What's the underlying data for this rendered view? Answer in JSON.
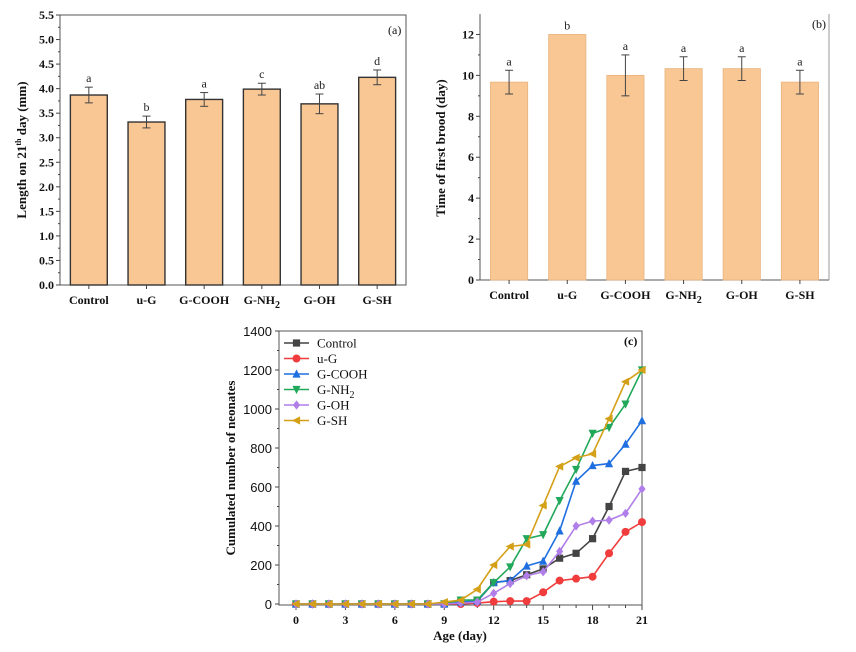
{
  "chart_data": [
    {
      "type": "bar",
      "panel": "(a)",
      "title": "",
      "xlabel": "",
      "ylabel": "Length on 21th day (mm)",
      "ylabel_parts": {
        "pre": "Length on 21",
        "sup": "th",
        "post": " day (mm)"
      },
      "categories": [
        "Control",
        "u-G",
        "G-COOH",
        "G-NH2",
        "G-OH",
        "G-SH"
      ],
      "category_labels": [
        {
          "main": "Control",
          "sub": ""
        },
        {
          "main": "u-G",
          "sub": ""
        },
        {
          "main": "G-COOH",
          "sub": ""
        },
        {
          "main": "G-NH",
          "sub": "2"
        },
        {
          "main": "G-OH",
          "sub": ""
        },
        {
          "main": "G-SH",
          "sub": ""
        }
      ],
      "values": [
        3.87,
        3.32,
        3.78,
        3.99,
        3.69,
        4.23
      ],
      "errors": [
        0.16,
        0.12,
        0.14,
        0.12,
        0.2,
        0.15
      ],
      "significance": [
        "a",
        "b",
        "a",
        "c",
        "ab",
        "d"
      ],
      "ylim": [
        0,
        5.5
      ],
      "yticks": [
        "0.0",
        "0.5",
        "1.0",
        "1.5",
        "2.0",
        "2.5",
        "3.0",
        "3.5",
        "4.0",
        "4.5",
        "5.0",
        "5.5"
      ],
      "bar_color": "#f9c794",
      "bar_edge": "#333333"
    },
    {
      "type": "bar",
      "panel": "(b)",
      "title": "",
      "xlabel": "",
      "ylabel": "Time of  first brood (day)",
      "categories": [
        "Control",
        "u-G",
        "G-COOH",
        "G-NH2",
        "G-OH",
        "G-SH"
      ],
      "category_labels": [
        {
          "main": "Control",
          "sub": ""
        },
        {
          "main": "u-G",
          "sub": ""
        },
        {
          "main": "G-COOH",
          "sub": ""
        },
        {
          "main": "G-NH",
          "sub": "2"
        },
        {
          "main": "G-OH",
          "sub": ""
        },
        {
          "main": "G-SH",
          "sub": ""
        }
      ],
      "values": [
        9.67,
        12.0,
        10.0,
        10.33,
        10.33,
        9.67
      ],
      "errors": [
        0.58,
        0,
        1.0,
        0.58,
        0.58,
        0.58
      ],
      "significance": [
        "a",
        "b",
        "a",
        "a",
        "a",
        "a"
      ],
      "ylim": [
        0,
        13
      ],
      "yticks": [
        "0",
        "2",
        "4",
        "6",
        "8",
        "10",
        "12"
      ],
      "bar_color": "#f9c794",
      "bar_edge": "#e8b27c"
    },
    {
      "type": "line",
      "panel": "(c)",
      "title": "",
      "xlabel": "Age (day)",
      "ylabel": "Cumulated number of neonates",
      "x": [
        0,
        1,
        2,
        3,
        4,
        5,
        6,
        7,
        8,
        9,
        10,
        11,
        12,
        13,
        14,
        15,
        16,
        17,
        18,
        19,
        20,
        21
      ],
      "xlim": [
        0,
        21
      ],
      "ylim": [
        0,
        1400
      ],
      "xticks": [
        "0",
        "3",
        "6",
        "9",
        "12",
        "15",
        "18",
        "21"
      ],
      "yticks": [
        "0",
        "200",
        "400",
        "600",
        "800",
        "1000",
        "1200",
        "1400"
      ],
      "legend_position": "top-left",
      "series": [
        {
          "name": "Control",
          "label_main": "Control",
          "label_sub": "",
          "color": "#444444",
          "marker": "square",
          "values": [
            0,
            0,
            0,
            0,
            0,
            0,
            0,
            0,
            0,
            0,
            10,
            15,
            110,
            120,
            150,
            180,
            235,
            260,
            335,
            500,
            680,
            700
          ]
        },
        {
          "name": "u-G",
          "label_main": "u-G",
          "label_sub": "",
          "color": "#f03c3c",
          "marker": "circle",
          "values": [
            0,
            0,
            0,
            0,
            0,
            0,
            0,
            0,
            0,
            0,
            0,
            5,
            12,
            15,
            15,
            60,
            120,
            130,
            140,
            260,
            370,
            420
          ]
        },
        {
          "name": "G-COOH",
          "label_main": "G-COOH",
          "label_sub": "",
          "color": "#1f6fe0",
          "marker": "triangle-up",
          "values": [
            0,
            0,
            0,
            0,
            0,
            0,
            0,
            0,
            0,
            0,
            10,
            15,
            110,
            120,
            195,
            220,
            375,
            630,
            710,
            720,
            820,
            940
          ]
        },
        {
          "name": "G-NH2",
          "label_main": "G-NH",
          "label_sub": "2",
          "color": "#22a85a",
          "marker": "triangle-down",
          "values": [
            0,
            0,
            0,
            0,
            0,
            0,
            0,
            0,
            0,
            0,
            20,
            20,
            110,
            190,
            335,
            355,
            530,
            690,
            875,
            905,
            1025,
            1200
          ]
        },
        {
          "name": "G-OH",
          "label_main": "G-OH",
          "label_sub": "",
          "color": "#b07ee8",
          "marker": "diamond",
          "values": [
            0,
            0,
            0,
            0,
            0,
            0,
            0,
            0,
            0,
            0,
            5,
            10,
            55,
            105,
            145,
            165,
            270,
            400,
            425,
            430,
            465,
            590
          ]
        },
        {
          "name": "G-SH",
          "label_main": "G-SH",
          "label_sub": "",
          "color": "#d4a017",
          "marker": "triangle-left",
          "values": [
            0,
            0,
            0,
            0,
            0,
            0,
            0,
            0,
            0,
            10,
            20,
            75,
            200,
            295,
            305,
            505,
            705,
            750,
            770,
            950,
            1140,
            1200
          ]
        }
      ]
    }
  ]
}
